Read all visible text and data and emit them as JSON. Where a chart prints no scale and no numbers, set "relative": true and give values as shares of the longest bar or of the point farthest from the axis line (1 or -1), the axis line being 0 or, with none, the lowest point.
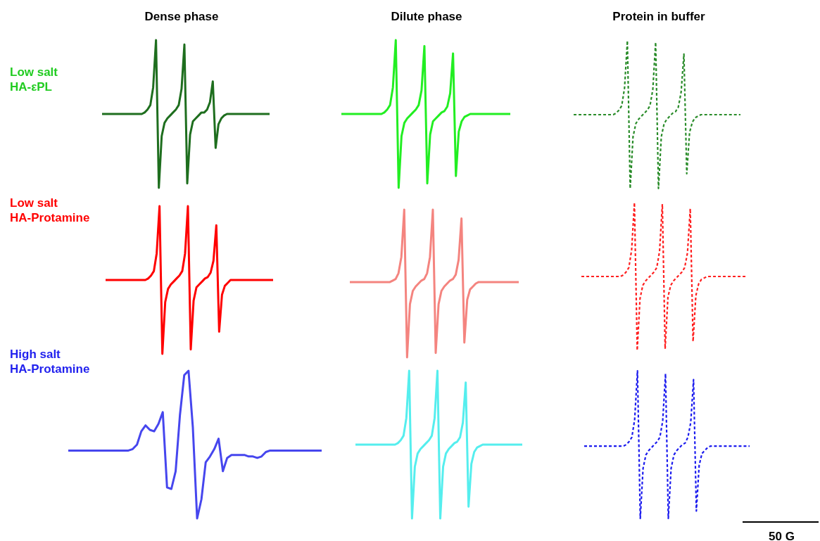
{
  "chart_data": [
    {
      "type": "line",
      "relative": true,
      "title": "Dense phase",
      "annotations": [
        "Low salt\nHA-εPL"
      ],
      "line_style": "solid",
      "categories": [
        null,
        null,
        null,
        null,
        null,
        null,
        null,
        null,
        null,
        null,
        null,
        null,
        null,
        null,
        null,
        null,
        null,
        null,
        null,
        null,
        null,
        null,
        null,
        null,
        null,
        null,
        null,
        null,
        null,
        null,
        null,
        null,
        null,
        null,
        null,
        null,
        null,
        null,
        null,
        null,
        null,
        null,
        null,
        null,
        null,
        null,
        null,
        null,
        null,
        null,
        null,
        null,
        null,
        null,
        null,
        null,
        null,
        null,
        null,
        null
      ],
      "series": [
        {
          "color": "#1e6e1e",
          "values": [
            0.5,
            0.5,
            0.5,
            0.5,
            0.5,
            0.5,
            0.5,
            0.5,
            0.5,
            0.5,
            0.5,
            0.5,
            0.5,
            0.5,
            0.5,
            0.51,
            0.53,
            0.56,
            0.68,
            1,
            0,
            0.35,
            0.44,
            0.47,
            0.49,
            0.51,
            0.53,
            0.56,
            0.67,
            0.97,
            0.03,
            0.36,
            0.45,
            0.47,
            0.49,
            0.51,
            0.51,
            0.53,
            0.58,
            0.72,
            0.27,
            0.43,
            0.47,
            0.49,
            0.5,
            0.5,
            0.5,
            0.5,
            0.5,
            0.5,
            0.5,
            0.5,
            0.5,
            0.5,
            0.5,
            0.5,
            0.5,
            0.5,
            0.5,
            0.5
          ]
        }
      ]
    },
    {
      "type": "line",
      "relative": true,
      "title": "Dilute phase",
      "line_style": "solid",
      "categories": [
        null,
        null,
        null,
        null,
        null,
        null,
        null,
        null,
        null,
        null,
        null,
        null,
        null,
        null,
        null,
        null,
        null,
        null,
        null,
        null,
        null,
        null,
        null,
        null,
        null,
        null,
        null,
        null,
        null,
        null,
        null,
        null,
        null,
        null,
        null,
        null,
        null,
        null,
        null,
        null,
        null,
        null,
        null,
        null,
        null,
        null,
        null,
        null,
        null,
        null,
        null,
        null,
        null,
        null,
        null,
        null,
        null,
        null,
        null,
        null
      ],
      "series": [
        {
          "color": "#22ee22",
          "values": [
            0.5,
            0.5,
            0.5,
            0.5,
            0.5,
            0.5,
            0.5,
            0.5,
            0.5,
            0.5,
            0.5,
            0.5,
            0.5,
            0.5,
            0.5,
            0.51,
            0.53,
            0.56,
            0.68,
            1,
            0,
            0.35,
            0.44,
            0.47,
            0.49,
            0.51,
            0.53,
            0.56,
            0.66,
            0.96,
            0.03,
            0.36,
            0.45,
            0.47,
            0.49,
            0.51,
            0.52,
            0.55,
            0.64,
            0.91,
            0.08,
            0.38,
            0.45,
            0.48,
            0.49,
            0.5,
            0.5,
            0.5,
            0.5,
            0.5,
            0.5,
            0.5,
            0.5,
            0.5,
            0.5,
            0.5,
            0.5,
            0.5,
            0.5,
            0.5
          ]
        }
      ]
    },
    {
      "type": "line",
      "relative": true,
      "title": "Protein in buffer",
      "line_style": "dashed",
      "categories": [
        null,
        null,
        null,
        null,
        null,
        null,
        null,
        null,
        null,
        null,
        null,
        null,
        null,
        null,
        null,
        null,
        null,
        null,
        null,
        null,
        null,
        null,
        null,
        null,
        null,
        null,
        null,
        null,
        null,
        null,
        null,
        null,
        null,
        null,
        null,
        null,
        null,
        null,
        null,
        null,
        null,
        null,
        null,
        null,
        null,
        null,
        null,
        null,
        null,
        null,
        null,
        null,
        null,
        null,
        null,
        null,
        null,
        null,
        null,
        null
      ],
      "series": [
        {
          "color": "#2a8c2a",
          "values": [
            0.5,
            0.5,
            0.5,
            0.5,
            0.5,
            0.5,
            0.5,
            0.5,
            0.5,
            0.5,
            0.5,
            0.5,
            0.5,
            0.5,
            0.5,
            0.51,
            0.53,
            0.56,
            0.68,
            1,
            0,
            0.35,
            0.44,
            0.47,
            0.49,
            0.51,
            0.53,
            0.56,
            0.67,
            0.99,
            0,
            0.35,
            0.44,
            0.47,
            0.49,
            0.51,
            0.52,
            0.55,
            0.65,
            0.91,
            0.1,
            0.38,
            0.45,
            0.48,
            0.49,
            0.5,
            0.5,
            0.5,
            0.5,
            0.5,
            0.5,
            0.5,
            0.5,
            0.5,
            0.5,
            0.5,
            0.5,
            0.5,
            0.5,
            0.5
          ]
        }
      ]
    },
    {
      "type": "line",
      "relative": true,
      "annotations": [
        "Low salt\nHA-Protamine"
      ],
      "line_style": "solid",
      "categories": [
        null,
        null,
        null,
        null,
        null,
        null,
        null,
        null,
        null,
        null,
        null,
        null,
        null,
        null,
        null,
        null,
        null,
        null,
        null,
        null,
        null,
        null,
        null,
        null,
        null,
        null,
        null,
        null,
        null,
        null,
        null,
        null,
        null,
        null,
        null,
        null,
        null,
        null,
        null,
        null,
        null,
        null,
        null,
        null,
        null,
        null,
        null,
        null,
        null,
        null,
        null,
        null,
        null,
        null,
        null,
        null,
        null,
        null,
        null,
        null
      ],
      "series": [
        {
          "color": "#ff0000",
          "values": [
            0.5,
            0.5,
            0.5,
            0.5,
            0.5,
            0.5,
            0.5,
            0.5,
            0.5,
            0.5,
            0.5,
            0.5,
            0.5,
            0.5,
            0.5,
            0.51,
            0.53,
            0.56,
            0.68,
            1,
            0,
            0.35,
            0.44,
            0.47,
            0.49,
            0.51,
            0.53,
            0.56,
            0.68,
            1,
            0.03,
            0.36,
            0.45,
            0.47,
            0.49,
            0.51,
            0.52,
            0.55,
            0.63,
            0.87,
            0.15,
            0.4,
            0.46,
            0.48,
            0.5,
            0.5,
            0.5,
            0.5,
            0.5,
            0.5,
            0.5,
            0.5,
            0.5,
            0.5,
            0.5,
            0.5,
            0.5,
            0.5,
            0.5,
            0.5
          ]
        }
      ]
    },
    {
      "type": "line",
      "relative": true,
      "line_style": "solid",
      "categories": [
        null,
        null,
        null,
        null,
        null,
        null,
        null,
        null,
        null,
        null,
        null,
        null,
        null,
        null,
        null,
        null,
        null,
        null,
        null,
        null,
        null,
        null,
        null,
        null,
        null,
        null,
        null,
        null,
        null,
        null,
        null,
        null,
        null,
        null,
        null,
        null,
        null,
        null,
        null,
        null,
        null,
        null,
        null,
        null,
        null,
        null,
        null,
        null,
        null,
        null,
        null,
        null,
        null,
        null,
        null,
        null,
        null,
        null,
        null,
        null
      ],
      "series": [
        {
          "color": "#f4847f",
          "values": [
            0.51,
            0.51,
            0.51,
            0.51,
            0.51,
            0.51,
            0.51,
            0.51,
            0.51,
            0.51,
            0.51,
            0.51,
            0.51,
            0.51,
            0.51,
            0.52,
            0.53,
            0.57,
            0.68,
            1,
            0,
            0.36,
            0.45,
            0.48,
            0.5,
            0.52,
            0.53,
            0.57,
            0.68,
            1,
            0.03,
            0.36,
            0.45,
            0.48,
            0.5,
            0.52,
            0.53,
            0.56,
            0.66,
            0.94,
            0.1,
            0.39,
            0.46,
            0.48,
            0.5,
            0.51,
            0.51,
            0.51,
            0.51,
            0.51,
            0.51,
            0.51,
            0.51,
            0.51,
            0.51,
            0.51,
            0.51,
            0.51,
            0.51,
            0.51
          ]
        }
      ]
    },
    {
      "type": "line",
      "relative": true,
      "line_style": "dashed",
      "categories": [
        null,
        null,
        null,
        null,
        null,
        null,
        null,
        null,
        null,
        null,
        null,
        null,
        null,
        null,
        null,
        null,
        null,
        null,
        null,
        null,
        null,
        null,
        null,
        null,
        null,
        null,
        null,
        null,
        null,
        null,
        null,
        null,
        null,
        null,
        null,
        null,
        null,
        null,
        null,
        null,
        null,
        null,
        null,
        null,
        null,
        null,
        null,
        null,
        null,
        null,
        null,
        null,
        null,
        null,
        null,
        null,
        null,
        null,
        null,
        null
      ],
      "series": [
        {
          "color": "#ff2020",
          "values": [
            0.5,
            0.5,
            0.5,
            0.5,
            0.5,
            0.5,
            0.5,
            0.5,
            0.5,
            0.5,
            0.5,
            0.5,
            0.5,
            0.5,
            0.5,
            0.51,
            0.53,
            0.56,
            0.68,
            1,
            0,
            0.35,
            0.44,
            0.47,
            0.49,
            0.51,
            0.53,
            0.56,
            0.67,
            0.99,
            0.01,
            0.36,
            0.44,
            0.47,
            0.49,
            0.51,
            0.53,
            0.56,
            0.66,
            0.96,
            0.06,
            0.37,
            0.45,
            0.48,
            0.49,
            0.5,
            0.5,
            0.5,
            0.5,
            0.5,
            0.5,
            0.5,
            0.5,
            0.5,
            0.5,
            0.5,
            0.5,
            0.5,
            0.5,
            0.5
          ]
        }
      ]
    },
    {
      "type": "line",
      "relative": true,
      "annotations": [
        "High salt\nHA-Protamine"
      ],
      "line_style": "solid",
      "categories": [
        null,
        null,
        null,
        null,
        null,
        null,
        null,
        null,
        null,
        null,
        null,
        null,
        null,
        null,
        null,
        null,
        null,
        null,
        null,
        null,
        null,
        null,
        null,
        null,
        null,
        null,
        null,
        null,
        null,
        null,
        null,
        null,
        null,
        null,
        null,
        null,
        null,
        null,
        null,
        null,
        null,
        null,
        null,
        null,
        null,
        null,
        null,
        null,
        null,
        null,
        null,
        null,
        null,
        null,
        null,
        null,
        null,
        null,
        null,
        null
      ],
      "series": [
        {
          "color": "#4646ee",
          "values": [
            0.46,
            0.46,
            0.46,
            0.46,
            0.46,
            0.46,
            0.46,
            0.46,
            0.46,
            0.46,
            0.46,
            0.46,
            0.46,
            0.46,
            0.46,
            0.47,
            0.5,
            0.59,
            0.63,
            0.6,
            0.59,
            0.64,
            0.72,
            0.21,
            0.2,
            0.32,
            0.7,
            0.97,
            1,
            0.62,
            0,
            0.13,
            0.38,
            0.42,
            0.47,
            0.54,
            0.32,
            0.41,
            0.43,
            0.43,
            0.43,
            0.43,
            0.42,
            0.42,
            0.41,
            0.42,
            0.45,
            0.46,
            0.46,
            0.46,
            0.46,
            0.46,
            0.46,
            0.46,
            0.46,
            0.46,
            0.46,
            0.46,
            0.46,
            0.46
          ]
        }
      ]
    },
    {
      "type": "line",
      "relative": true,
      "line_style": "solid",
      "categories": [
        null,
        null,
        null,
        null,
        null,
        null,
        null,
        null,
        null,
        null,
        null,
        null,
        null,
        null,
        null,
        null,
        null,
        null,
        null,
        null,
        null,
        null,
        null,
        null,
        null,
        null,
        null,
        null,
        null,
        null,
        null,
        null,
        null,
        null,
        null,
        null,
        null,
        null,
        null,
        null,
        null,
        null,
        null,
        null,
        null,
        null,
        null,
        null,
        null,
        null,
        null,
        null,
        null,
        null,
        null,
        null,
        null,
        null,
        null,
        null
      ],
      "series": [
        {
          "color": "#55eeee",
          "values": [
            0.5,
            0.5,
            0.5,
            0.5,
            0.5,
            0.5,
            0.5,
            0.5,
            0.5,
            0.5,
            0.5,
            0.5,
            0.5,
            0.5,
            0.5,
            0.51,
            0.53,
            0.56,
            0.68,
            1,
            0,
            0.35,
            0.44,
            0.47,
            0.49,
            0.51,
            0.53,
            0.56,
            0.68,
            1,
            0,
            0.35,
            0.44,
            0.47,
            0.49,
            0.51,
            0.52,
            0.55,
            0.65,
            0.92,
            0.08,
            0.37,
            0.45,
            0.48,
            0.49,
            0.5,
            0.5,
            0.5,
            0.5,
            0.5,
            0.5,
            0.5,
            0.5,
            0.5,
            0.5,
            0.5,
            0.5,
            0.5,
            0.5,
            0.5
          ]
        }
      ]
    },
    {
      "type": "line",
      "relative": true,
      "annotations": [
        "50 G"
      ],
      "line_style": "dashed",
      "categories": [
        null,
        null,
        null,
        null,
        null,
        null,
        null,
        null,
        null,
        null,
        null,
        null,
        null,
        null,
        null,
        null,
        null,
        null,
        null,
        null,
        null,
        null,
        null,
        null,
        null,
        null,
        null,
        null,
        null,
        null,
        null,
        null,
        null,
        null,
        null,
        null,
        null,
        null,
        null,
        null,
        null,
        null,
        null,
        null,
        null,
        null,
        null,
        null,
        null,
        null,
        null,
        null,
        null,
        null,
        null,
        null,
        null,
        null,
        null,
        null
      ],
      "series": [
        {
          "color": "#1a1aee",
          "values": [
            0.49,
            0.49,
            0.49,
            0.49,
            0.49,
            0.49,
            0.49,
            0.49,
            0.49,
            0.49,
            0.49,
            0.49,
            0.49,
            0.49,
            0.49,
            0.5,
            0.52,
            0.55,
            0.67,
            1,
            0,
            0.34,
            0.43,
            0.46,
            0.48,
            0.5,
            0.52,
            0.55,
            0.66,
            0.98,
            0,
            0.34,
            0.43,
            0.46,
            0.48,
            0.5,
            0.51,
            0.55,
            0.65,
            0.94,
            0.05,
            0.36,
            0.44,
            0.46,
            0.48,
            0.49,
            0.49,
            0.49,
            0.49,
            0.49,
            0.49,
            0.49,
            0.49,
            0.49,
            0.49,
            0.49,
            0.49,
            0.49,
            0.49,
            0.49
          ]
        }
      ]
    }
  ]
}
